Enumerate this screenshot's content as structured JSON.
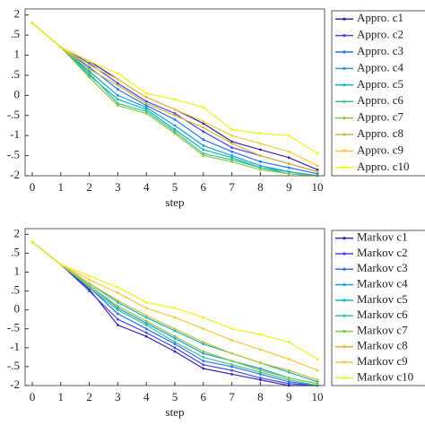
{
  "chart_data": [
    {
      "type": "line",
      "x_label": "step",
      "x": [
        0,
        1,
        2,
        3,
        4,
        5,
        6,
        7,
        8,
        9,
        10
      ],
      "xlim": [
        -0.25,
        10.25
      ],
      "xticks": [
        0,
        1,
        2,
        3,
        4,
        5,
        6,
        7,
        8,
        9,
        10
      ],
      "ylim": [
        -2,
        2.15
      ],
      "yticks": [
        {
          "value": -2,
          "label": "-2"
        },
        {
          "value": -1.5,
          "label": "-.5"
        },
        {
          "value": -1,
          "label": "-1"
        },
        {
          "value": -0.5,
          "label": "-.5"
        },
        0,
        {
          "value": 0.5,
          "label": ".5"
        },
        1,
        {
          "value": 1.5,
          "label": ".5"
        },
        2
      ],
      "legend": "right",
      "series": [
        {
          "name": "Appro. c1",
          "color": "#3e26a8",
          "values": [
            1.8,
            1.2,
            0.85,
            0.4,
            -0.05,
            -0.35,
            -0.7,
            -1.15,
            -1.35,
            -1.55,
            -1.85
          ]
        },
        {
          "name": "Appro. c2",
          "color": "#4746eb",
          "values": [
            1.8,
            1.2,
            0.8,
            0.3,
            -0.15,
            -0.45,
            -0.9,
            -1.3,
            -1.5,
            -1.7,
            -1.9
          ]
        },
        {
          "name": "Appro. c3",
          "color": "#2c73f2",
          "values": [
            1.8,
            1.2,
            0.7,
            0.15,
            -0.25,
            -0.6,
            -1.1,
            -1.4,
            -1.65,
            -1.8,
            -1.95
          ]
        },
        {
          "name": "Appro. c4",
          "color": "#1a9fd8",
          "values": [
            1.8,
            1.2,
            0.6,
            0.0,
            -0.3,
            -0.75,
            -1.25,
            -1.5,
            -1.75,
            -1.9,
            -2.0
          ]
        },
        {
          "name": "Appro. c5",
          "color": "#0bb8b6",
          "values": [
            1.8,
            1.2,
            0.5,
            -0.1,
            -0.35,
            -0.85,
            -1.35,
            -1.55,
            -1.8,
            -1.9,
            -2.0
          ]
        },
        {
          "name": "Appro. c6",
          "color": "#3dc28c",
          "values": [
            1.8,
            1.2,
            0.55,
            -0.2,
            -0.4,
            -0.9,
            -1.45,
            -1.6,
            -1.8,
            -1.95,
            -2.0
          ]
        },
        {
          "name": "Appro. c7",
          "color": "#8ec64a",
          "values": [
            1.8,
            1.2,
            0.45,
            -0.25,
            -0.45,
            -0.95,
            -1.5,
            -1.65,
            -1.85,
            -1.95,
            -2.0
          ]
        },
        {
          "name": "Appro. c8",
          "color": "#d2ba3b",
          "values": [
            1.8,
            1.2,
            0.65,
            0.25,
            -0.2,
            -0.5,
            -0.8,
            -1.2,
            -1.5,
            -1.7,
            -1.9
          ]
        },
        {
          "name": "Appro. c9",
          "color": "#f6c93a",
          "values": [
            1.8,
            1.2,
            0.75,
            0.4,
            -0.05,
            -0.35,
            -0.65,
            -1.0,
            -1.2,
            -1.4,
            -1.75
          ]
        },
        {
          "name": "Appro. c10",
          "color": "#f3f01c",
          "values": [
            1.8,
            1.2,
            0.85,
            0.55,
            0.05,
            -0.1,
            -0.3,
            -0.85,
            -0.95,
            -1.0,
            -1.45
          ]
        }
      ]
    },
    {
      "type": "line",
      "x_label": "step",
      "x": [
        0,
        1,
        2,
        3,
        4,
        5,
        6,
        7,
        8,
        9,
        10
      ],
      "xlim": [
        -0.25,
        10.25
      ],
      "xticks": [
        0,
        1,
        2,
        3,
        4,
        5,
        6,
        7,
        8,
        9,
        10
      ],
      "ylim": [
        -2,
        2.15
      ],
      "yticks": [
        {
          "value": -2,
          "label": "-2"
        },
        {
          "value": -1.5,
          "label": "-.5"
        },
        {
          "value": -1,
          "label": "-1"
        },
        {
          "value": -0.5,
          "label": "-.5"
        },
        0,
        {
          "value": 0.5,
          "label": ".5"
        },
        1,
        {
          "value": 1.5,
          "label": ".5"
        },
        2
      ],
      "legend": "right",
      "series": [
        {
          "name": "Markov c1",
          "color": "#3e26a8",
          "values": [
            1.8,
            1.2,
            0.55,
            -0.4,
            -0.7,
            -1.1,
            -1.55,
            -1.7,
            -1.85,
            -2.0,
            -2.0
          ]
        },
        {
          "name": "Markov c2",
          "color": "#4746eb",
          "values": [
            1.8,
            1.2,
            0.5,
            -0.25,
            -0.6,
            -1.0,
            -1.45,
            -1.6,
            -1.8,
            -1.95,
            -2.0
          ]
        },
        {
          "name": "Markov c3",
          "color": "#2c73f2",
          "values": [
            1.8,
            1.2,
            0.6,
            -0.1,
            -0.5,
            -0.9,
            -1.35,
            -1.5,
            -1.7,
            -1.9,
            -2.0
          ]
        },
        {
          "name": "Markov c4",
          "color": "#1a9fd8",
          "values": [
            1.8,
            1.2,
            0.65,
            0.05,
            -0.35,
            -0.75,
            -1.15,
            -1.35,
            -1.55,
            -1.8,
            -1.95
          ]
        },
        {
          "name": "Markov c5",
          "color": "#0bb8b6",
          "values": [
            1.8,
            1.2,
            0.7,
            0.2,
            -0.2,
            -0.55,
            -0.9,
            -1.15,
            -1.4,
            -1.65,
            -1.9
          ]
        },
        {
          "name": "Markov c6",
          "color": "#3dc28c",
          "values": [
            1.8,
            1.2,
            0.6,
            0.0,
            -0.4,
            -0.85,
            -1.25,
            -1.45,
            -1.65,
            -1.85,
            -2.0
          ]
        },
        {
          "name": "Markov c7",
          "color": "#8ec64a",
          "values": [
            1.8,
            1.2,
            0.65,
            0.1,
            -0.3,
            -0.7,
            -1.1,
            -1.35,
            -1.6,
            -1.8,
            -1.95
          ]
        },
        {
          "name": "Markov c8",
          "color": "#d2ba3b",
          "values": [
            1.8,
            1.2,
            0.7,
            0.25,
            -0.15,
            -0.5,
            -0.85,
            -1.15,
            -1.4,
            -1.6,
            -1.85
          ]
        },
        {
          "name": "Markov c9",
          "color": "#f6c93a",
          "values": [
            1.8,
            1.2,
            0.8,
            0.45,
            0.05,
            -0.2,
            -0.5,
            -0.8,
            -1.05,
            -1.3,
            -1.6
          ]
        },
        {
          "name": "Markov c10",
          "color": "#f3f01c",
          "values": [
            1.8,
            1.2,
            0.9,
            0.6,
            0.2,
            0.05,
            -0.2,
            -0.5,
            -0.65,
            -0.85,
            -1.3
          ]
        }
      ]
    }
  ]
}
